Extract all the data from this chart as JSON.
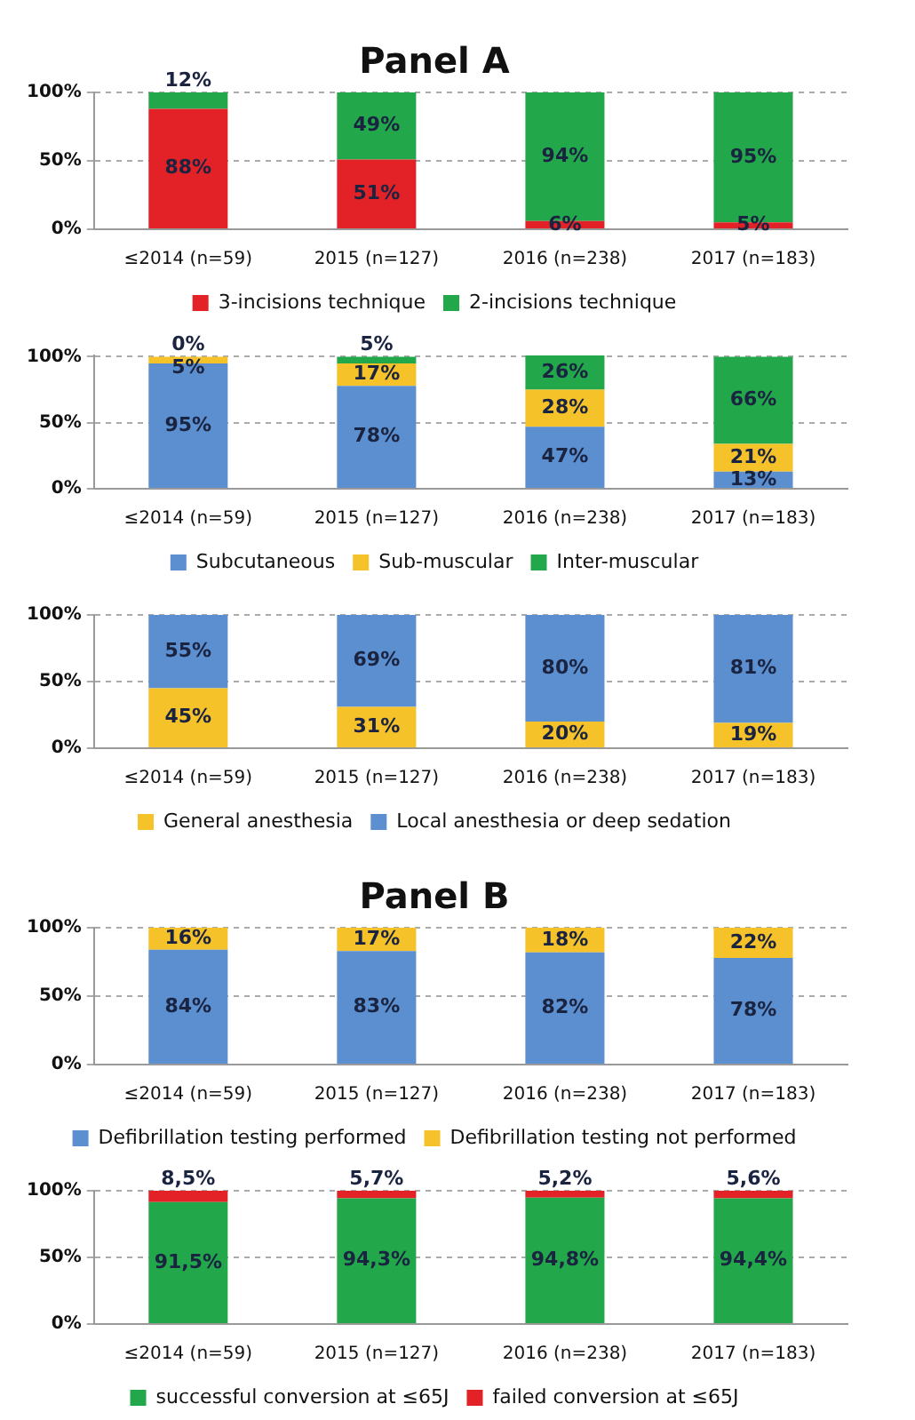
{
  "chart_data": [
    {
      "type": "bar",
      "title": "Panel A",
      "categories": [
        "≤2014 (n=59)",
        "2015 (n=127)",
        "2016 (n=238)",
        "2017 (n=183)"
      ],
      "stacked": true,
      "ylim": [
        0,
        100
      ],
      "yticks": [
        {
          "value": 0,
          "label": "0%"
        },
        {
          "value": 50,
          "label": "50%"
        },
        {
          "value": 100,
          "label": "100%"
        }
      ],
      "grid": "y",
      "legend": "bottom",
      "series": [
        {
          "name": "3-incisions technique",
          "color": "#e32228",
          "values": [
            88,
            51,
            6,
            5
          ],
          "value_labels": [
            "88%",
            "51%",
            "6%",
            "5%"
          ]
        },
        {
          "name": "2-incisions technique",
          "color": "#22a84a",
          "values": [
            12,
            49,
            94,
            95
          ],
          "value_labels": [
            "12%",
            "49%",
            "94%",
            "95%"
          ]
        }
      ]
    },
    {
      "type": "bar",
      "categories": [
        "≤2014 (n=59)",
        "2015 (n=127)",
        "2016 (n=238)",
        "2017 (n=183)"
      ],
      "stacked": true,
      "ylim": [
        0,
        101
      ],
      "yticks": [
        {
          "value": 0,
          "label": "0%"
        },
        {
          "value": 50,
          "label": "50%"
        },
        {
          "value": 100,
          "label": "100%"
        }
      ],
      "grid": "y",
      "legend": "bottom",
      "series": [
        {
          "name": "Subcutaneous",
          "color": "#5b8fd0",
          "values": [
            95,
            78,
            47,
            13
          ],
          "value_labels": [
            "95%",
            "78%",
            "47%",
            "13%"
          ]
        },
        {
          "name": "Sub-muscular",
          "color": "#f5c22a",
          "values": [
            5,
            17,
            28,
            21
          ],
          "value_labels": [
            "5%",
            "17%",
            "28%",
            "21%"
          ]
        },
        {
          "name": "Inter-muscular",
          "color": "#22a84a",
          "values": [
            0,
            5,
            26,
            66
          ],
          "value_labels": [
            "0%",
            "5%",
            "26%",
            "66%"
          ]
        }
      ]
    },
    {
      "type": "bar",
      "categories": [
        "≤2014 (n=59)",
        "2015 (n=127)",
        "2016 (n=238)",
        "2017 (n=183)"
      ],
      "stacked": true,
      "ylim": [
        0,
        100
      ],
      "yticks": [
        {
          "value": 0,
          "label": "0%"
        },
        {
          "value": 50,
          "label": "50%"
        },
        {
          "value": 100,
          "label": "100%"
        }
      ],
      "grid": "y",
      "legend": "bottom",
      "series": [
        {
          "name": "General anesthesia",
          "color": "#f5c22a",
          "values": [
            45,
            31,
            20,
            19
          ],
          "value_labels": [
            "45%",
            "31%",
            "20%",
            "19%"
          ]
        },
        {
          "name": "Local anesthesia or deep sedation",
          "color": "#5b8fd0",
          "values": [
            55,
            69,
            80,
            81
          ],
          "value_labels": [
            "55%",
            "69%",
            "80%",
            "81%"
          ]
        }
      ]
    },
    {
      "type": "bar",
      "title": "Panel B",
      "categories": [
        "≤2014 (n=59)",
        "2015 (n=127)",
        "2016 (n=238)",
        "2017 (n=183)"
      ],
      "stacked": true,
      "ylim": [
        0,
        100
      ],
      "yticks": [
        {
          "value": 0,
          "label": "0%"
        },
        {
          "value": 50,
          "label": "50%"
        },
        {
          "value": 100,
          "label": "100%"
        }
      ],
      "grid": "y",
      "legend": "bottom",
      "series": [
        {
          "name": "Defibrillation testing performed",
          "color": "#5b8fd0",
          "values": [
            84,
            83,
            82,
            78
          ],
          "value_labels": [
            "84%",
            "83%",
            "82%",
            "78%"
          ]
        },
        {
          "name": "Defibrillation testing not performed",
          "color": "#f5c22a",
          "values": [
            16,
            17,
            18,
            22
          ],
          "value_labels": [
            "16%",
            "17%",
            "18%",
            "22%"
          ]
        }
      ]
    },
    {
      "type": "bar",
      "categories": [
        "≤2014 (n=59)",
        "2015 (n=127)",
        "2016 (n=238)",
        "2017 (n=183)"
      ],
      "stacked": true,
      "ylim": [
        0,
        100
      ],
      "yticks": [
        {
          "value": 0,
          "label": "0%"
        },
        {
          "value": 50,
          "label": "50%"
        },
        {
          "value": 100,
          "label": "100%"
        }
      ],
      "grid": "y",
      "legend": "bottom",
      "series": [
        {
          "name": "successful conversion at ≤65J",
          "color": "#22a84a",
          "values": [
            91.5,
            94.3,
            94.8,
            94.4
          ],
          "value_labels": [
            "91,5%",
            "94,3%",
            "94,8%",
            "94,4%"
          ]
        },
        {
          "name": "failed conversion at ≤65J",
          "color": "#e32228",
          "values": [
            8.5,
            5.7,
            5.2,
            5.6
          ],
          "value_labels": [
            "8,5%",
            "5,7%",
            "5,2%",
            "5,6%"
          ]
        }
      ]
    }
  ]
}
